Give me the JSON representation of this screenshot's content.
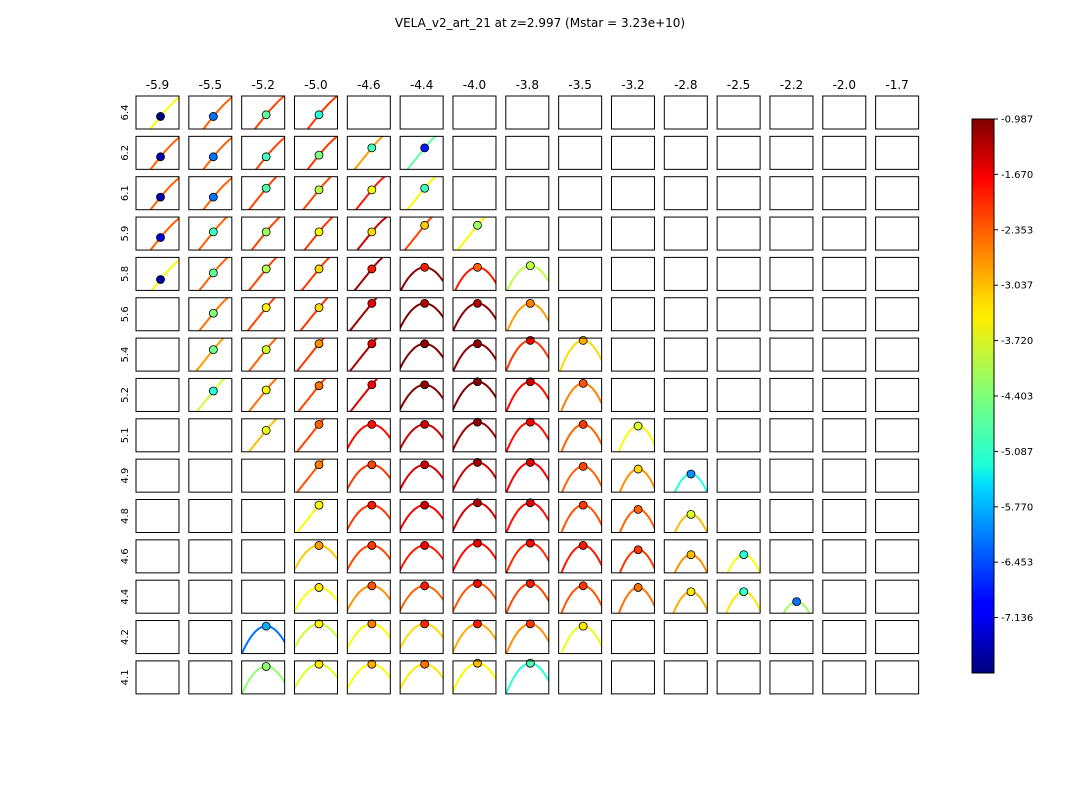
{
  "chart_data": {
    "type": "heatmap",
    "title": "VELA_v2_art_21 at z=2.997 (Mstar = 3.23e+10)",
    "columns": [
      "-5.9",
      "-5.5",
      "-5.2",
      "-5.0",
      "-4.6",
      "-4.4",
      "-4.0",
      "-3.8",
      "-3.5",
      "-3.2",
      "-2.8",
      "-2.5",
      "-2.2",
      "-2.0",
      "-1.7"
    ],
    "rows": [
      "6.4",
      "6.2",
      "6.1",
      "5.9",
      "5.8",
      "5.6",
      "5.4",
      "5.2",
      "5.1",
      "4.9",
      "4.8",
      "4.6",
      "4.4",
      "4.2",
      "4.1"
    ],
    "colorbar": {
      "colormap": "jet",
      "vmin": -7.82,
      "vmax": -0.987,
      "tick_labels": [
        "-0.987",
        "-1.670",
        "-2.353",
        "-3.037",
        "-3.720",
        "-4.403",
        "-5.087",
        "-5.770",
        "-6.453",
        "-7.136"
      ]
    },
    "grid": false,
    "cells": [
      {
        "r": 0,
        "c": 0,
        "v": -7.8,
        "line": -3.6,
        "dx": 0.57,
        "dy": 0.62,
        "shape": "rise",
        "s": 0.25
      },
      {
        "r": 0,
        "c": 1,
        "v": -6.2,
        "line": -2.5,
        "dx": 0.57,
        "dy": 0.62,
        "shape": "rise",
        "s": 0.25
      },
      {
        "r": 0,
        "c": 2,
        "v": -4.6,
        "line": -2.3,
        "dx": 0.57,
        "dy": 0.57,
        "shape": "rise",
        "s": 0.25
      },
      {
        "r": 0,
        "c": 3,
        "v": -5.0,
        "line": -2.2,
        "dx": 0.57,
        "dy": 0.57,
        "shape": "rise",
        "s": 0.25
      },
      {
        "r": 1,
        "c": 0,
        "v": -7.5,
        "line": -2.5,
        "dx": 0.57,
        "dy": 0.62,
        "shape": "rise",
        "s": 0.25
      },
      {
        "r": 1,
        "c": 1,
        "v": -6.2,
        "line": -2.5,
        "dx": 0.57,
        "dy": 0.62,
        "shape": "rise",
        "s": 0.25
      },
      {
        "r": 1,
        "c": 2,
        "v": -4.8,
        "line": -2.3,
        "dx": 0.57,
        "dy": 0.62,
        "shape": "rise",
        "s": 0.25
      },
      {
        "r": 1,
        "c": 3,
        "v": -4.4,
        "line": -2.2,
        "dx": 0.57,
        "dy": 0.57,
        "shape": "rise",
        "s": 0.25
      },
      {
        "r": 1,
        "c": 4,
        "v": -4.8,
        "line": -2.9,
        "dx": 0.57,
        "dy": 0.35,
        "shape": "rise",
        "s": 0.35
      },
      {
        "r": 1,
        "c": 5,
        "v": -6.8,
        "line": -4.6,
        "dx": 0.57,
        "dy": 0.35,
        "shape": "rise",
        "s": 0.35
      },
      {
        "r": 2,
        "c": 0,
        "v": -7.5,
        "line": -2.5,
        "dx": 0.57,
        "dy": 0.62,
        "shape": "rise",
        "s": 0.25
      },
      {
        "r": 2,
        "c": 1,
        "v": -6.2,
        "line": -2.5,
        "dx": 0.57,
        "dy": 0.62,
        "shape": "rise",
        "s": 0.25
      },
      {
        "r": 2,
        "c": 2,
        "v": -4.7,
        "line": -2.3,
        "dx": 0.57,
        "dy": 0.35,
        "shape": "rise",
        "s": 0.25
      },
      {
        "r": 2,
        "c": 3,
        "v": -4.0,
        "line": -2.3,
        "dx": 0.57,
        "dy": 0.4,
        "shape": "rise",
        "s": 0.25
      },
      {
        "r": 2,
        "c": 4,
        "v": -3.6,
        "line": -2.0,
        "dx": 0.57,
        "dy": 0.4,
        "shape": "rise",
        "s": 0.35
      },
      {
        "r": 2,
        "c": 5,
        "v": -4.8,
        "line": -3.5,
        "dx": 0.57,
        "dy": 0.35,
        "shape": "rise",
        "s": 0.35
      },
      {
        "r": 3,
        "c": 0,
        "v": -7.2,
        "line": -2.5,
        "dx": 0.57,
        "dy": 0.62,
        "shape": "rise",
        "s": 0.25
      },
      {
        "r": 3,
        "c": 1,
        "v": -4.8,
        "line": -2.5,
        "dx": 0.57,
        "dy": 0.45,
        "shape": "rise",
        "s": 0.25
      },
      {
        "r": 3,
        "c": 2,
        "v": -4.2,
        "line": -2.3,
        "dx": 0.57,
        "dy": 0.45,
        "shape": "rise",
        "s": 0.25
      },
      {
        "r": 3,
        "c": 3,
        "v": -3.5,
        "line": -2.2,
        "dx": 0.57,
        "dy": 0.45,
        "shape": "rise",
        "s": 0.25
      },
      {
        "r": 3,
        "c": 4,
        "v": -3.3,
        "line": -1.5,
        "dx": 0.57,
        "dy": 0.45,
        "shape": "rise",
        "s": 0.35
      },
      {
        "r": 3,
        "c": 5,
        "v": -3.2,
        "line": -2.3,
        "dx": 0.57,
        "dy": 0.25,
        "shape": "rise",
        "s": 0.35
      },
      {
        "r": 3,
        "c": 6,
        "v": -4.2,
        "line": -3.5,
        "dx": 0.57,
        "dy": 0.25,
        "shape": "rise",
        "s": 0.4
      },
      {
        "r": 4,
        "c": 0,
        "v": -7.6,
        "line": -3.6,
        "dx": 0.57,
        "dy": 0.67,
        "shape": "rise",
        "s": 0.25
      },
      {
        "r": 4,
        "c": 1,
        "v": -4.6,
        "line": -2.5,
        "dx": 0.57,
        "dy": 0.47,
        "shape": "rise",
        "s": 0.25
      },
      {
        "r": 4,
        "c": 2,
        "v": -4.0,
        "line": -2.3,
        "dx": 0.57,
        "dy": 0.35,
        "shape": "rise",
        "s": 0.25
      },
      {
        "r": 4,
        "c": 3,
        "v": -3.3,
        "line": -2.2,
        "dx": 0.57,
        "dy": 0.35,
        "shape": "rise",
        "s": 0.25
      },
      {
        "r": 4,
        "c": 4,
        "v": -2.0,
        "line": -1.2,
        "dx": 0.57,
        "dy": 0.35,
        "shape": "rise",
        "s": 0.35
      },
      {
        "r": 4,
        "c": 5,
        "v": -2.0,
        "line": -1.1,
        "dx": 0.57,
        "dy": 0.3,
        "shape": "arch",
        "s": 0.35
      },
      {
        "r": 4,
        "c": 6,
        "v": -2.5,
        "line": -2.0,
        "dx": 0.57,
        "dy": 0.3,
        "shape": "arch",
        "s": 0.4
      },
      {
        "r": 4,
        "c": 7,
        "v": -4.0,
        "line": -4.0,
        "dx": 0.57,
        "dy": 0.25,
        "shape": "arch",
        "s": 0.4
      },
      {
        "r": 5,
        "c": 1,
        "v": -4.4,
        "line": -2.6,
        "dx": 0.57,
        "dy": 0.47,
        "shape": "rise",
        "s": 0.25
      },
      {
        "r": 5,
        "c": 2,
        "v": -3.5,
        "line": -2.3,
        "dx": 0.57,
        "dy": 0.3,
        "shape": "rise",
        "s": 0.25
      },
      {
        "r": 5,
        "c": 3,
        "v": -3.3,
        "line": -2.2,
        "dx": 0.57,
        "dy": 0.3,
        "shape": "rise",
        "s": 0.25
      },
      {
        "r": 5,
        "c": 4,
        "v": -1.7,
        "line": -1.2,
        "dx": 0.57,
        "dy": 0.17,
        "shape": "rise",
        "s": 0.35
      },
      {
        "r": 5,
        "c": 5,
        "v": -1.3,
        "line": -1.0,
        "dx": 0.57,
        "dy": 0.17,
        "shape": "arch",
        "s": 0.35
      },
      {
        "r": 5,
        "c": 6,
        "v": -1.3,
        "line": -1.1,
        "dx": 0.57,
        "dy": 0.17,
        "shape": "arch",
        "s": 0.4
      },
      {
        "r": 5,
        "c": 7,
        "v": -2.7,
        "line": -2.9,
        "dx": 0.57,
        "dy": 0.17,
        "shape": "arch",
        "s": 0.45
      },
      {
        "r": 6,
        "c": 1,
        "v": -4.5,
        "line": -2.9,
        "dx": 0.57,
        "dy": 0.35,
        "shape": "rise",
        "s": 0.25
      },
      {
        "r": 6,
        "c": 2,
        "v": -3.8,
        "line": -2.5,
        "dx": 0.57,
        "dy": 0.35,
        "shape": "rise",
        "s": 0.25
      },
      {
        "r": 6,
        "c": 3,
        "v": -2.8,
        "line": -2.2,
        "dx": 0.57,
        "dy": 0.17,
        "shape": "rise",
        "s": 0.3
      },
      {
        "r": 6,
        "c": 4,
        "v": -1.7,
        "line": -1.3,
        "dx": 0.57,
        "dy": 0.17,
        "shape": "rise",
        "s": 0.35
      },
      {
        "r": 6,
        "c": 5,
        "v": -1.1,
        "line": -1.0,
        "dx": 0.57,
        "dy": 0.17,
        "shape": "arch",
        "s": 0.35
      },
      {
        "r": 6,
        "c": 6,
        "v": -1.1,
        "line": -1.1,
        "dx": 0.57,
        "dy": 0.17,
        "shape": "arch",
        "s": 0.4
      },
      {
        "r": 6,
        "c": 7,
        "v": -1.8,
        "line": -2.2,
        "dx": 0.57,
        "dy": 0.07,
        "shape": "arch",
        "s": 0.45
      },
      {
        "r": 6,
        "c": 8,
        "v": -3.0,
        "line": -3.3,
        "dx": 0.57,
        "dy": 0.07,
        "shape": "arch",
        "s": 0.5
      },
      {
        "r": 7,
        "c": 1,
        "v": -5.0,
        "line": -3.9,
        "dx": 0.57,
        "dy": 0.38,
        "shape": "rise",
        "s": 0.25
      },
      {
        "r": 7,
        "c": 2,
        "v": -3.5,
        "line": -2.6,
        "dx": 0.57,
        "dy": 0.35,
        "shape": "rise",
        "s": 0.25
      },
      {
        "r": 7,
        "c": 3,
        "v": -2.6,
        "line": -2.3,
        "dx": 0.57,
        "dy": 0.22,
        "shape": "rise",
        "s": 0.3
      },
      {
        "r": 7,
        "c": 4,
        "v": -1.8,
        "line": -1.6,
        "dx": 0.57,
        "dy": 0.19,
        "shape": "rise",
        "s": 0.35
      },
      {
        "r": 7,
        "c": 5,
        "v": -1.1,
        "line": -1.0,
        "dx": 0.57,
        "dy": 0.19,
        "shape": "arch",
        "s": 0.35
      },
      {
        "r": 7,
        "c": 6,
        "v": -1.0,
        "line": -1.0,
        "dx": 0.57,
        "dy": 0.1,
        "shape": "arch",
        "s": 0.4
      },
      {
        "r": 7,
        "c": 7,
        "v": -1.5,
        "line": -1.9,
        "dx": 0.57,
        "dy": 0.1,
        "shape": "arch",
        "s": 0.45
      },
      {
        "r": 7,
        "c": 8,
        "v": -2.4,
        "line": -2.7,
        "dx": 0.57,
        "dy": 0.15,
        "shape": "arch",
        "s": 0.5
      },
      {
        "r": 8,
        "c": 2,
        "v": -3.7,
        "line": -3.1,
        "dx": 0.57,
        "dy": 0.35,
        "shape": "rise",
        "s": 0.25
      },
      {
        "r": 8,
        "c": 3,
        "v": -2.5,
        "line": -2.3,
        "dx": 0.57,
        "dy": 0.17,
        "shape": "rise",
        "s": 0.3
      },
      {
        "r": 8,
        "c": 4,
        "v": -1.9,
        "line": -1.9,
        "dx": 0.57,
        "dy": 0.17,
        "shape": "arch",
        "s": 0.35
      },
      {
        "r": 8,
        "c": 5,
        "v": -1.5,
        "line": -1.5,
        "dx": 0.57,
        "dy": 0.17,
        "shape": "arch",
        "s": 0.35
      },
      {
        "r": 8,
        "c": 6,
        "v": -1.1,
        "line": -1.2,
        "dx": 0.57,
        "dy": 0.1,
        "shape": "arch",
        "s": 0.4
      },
      {
        "r": 8,
        "c": 7,
        "v": -1.8,
        "line": -1.9,
        "dx": 0.57,
        "dy": 0.1,
        "shape": "arch",
        "s": 0.45
      },
      {
        "r": 8,
        "c": 8,
        "v": -2.2,
        "line": -2.5,
        "dx": 0.57,
        "dy": 0.17,
        "shape": "arch",
        "s": 0.5
      },
      {
        "r": 8,
        "c": 9,
        "v": -3.8,
        "line": -3.5,
        "dx": 0.62,
        "dy": 0.22,
        "shape": "arch",
        "s": 0.6
      },
      {
        "r": 9,
        "c": 3,
        "v": -2.7,
        "line": -2.4,
        "dx": 0.57,
        "dy": 0.17,
        "shape": "rise",
        "s": 0.3
      },
      {
        "r": 9,
        "c": 4,
        "v": -2.3,
        "line": -2.2,
        "dx": 0.57,
        "dy": 0.17,
        "shape": "arch",
        "s": 0.35
      },
      {
        "r": 9,
        "c": 5,
        "v": -1.5,
        "line": -1.6,
        "dx": 0.57,
        "dy": 0.17,
        "shape": "arch",
        "s": 0.35
      },
      {
        "r": 9,
        "c": 6,
        "v": -1.2,
        "line": -1.5,
        "dx": 0.57,
        "dy": 0.1,
        "shape": "arch",
        "s": 0.4
      },
      {
        "r": 9,
        "c": 7,
        "v": -1.6,
        "line": -1.8,
        "dx": 0.57,
        "dy": 0.1,
        "shape": "arch",
        "s": 0.45
      },
      {
        "r": 9,
        "c": 8,
        "v": -2.3,
        "line": -2.5,
        "dx": 0.57,
        "dy": 0.22,
        "shape": "arch",
        "s": 0.5
      },
      {
        "r": 9,
        "c": 9,
        "v": -3.3,
        "line": -2.8,
        "dx": 0.62,
        "dy": 0.3,
        "shape": "arch",
        "s": 0.6
      },
      {
        "r": 9,
        "c": 10,
        "v": -6.0,
        "line": -5.0,
        "dx": 0.62,
        "dy": 0.45,
        "shape": "arch",
        "s": 0.6
      },
      {
        "r": 10,
        "c": 3,
        "v": -3.6,
        "line": -3.5,
        "dx": 0.57,
        "dy": 0.17,
        "shape": "rise",
        "s": 0.35
      },
      {
        "r": 10,
        "c": 4,
        "v": -2.0,
        "line": -2.2,
        "dx": 0.57,
        "dy": 0.17,
        "shape": "arch",
        "s": 0.35
      },
      {
        "r": 10,
        "c": 5,
        "v": -1.5,
        "line": -1.8,
        "dx": 0.57,
        "dy": 0.17,
        "shape": "arch",
        "s": 0.35
      },
      {
        "r": 10,
        "c": 6,
        "v": -1.3,
        "line": -1.6,
        "dx": 0.57,
        "dy": 0.1,
        "shape": "arch",
        "s": 0.4
      },
      {
        "r": 10,
        "c": 7,
        "v": -1.6,
        "line": -1.9,
        "dx": 0.57,
        "dy": 0.1,
        "shape": "arch",
        "s": 0.45
      },
      {
        "r": 10,
        "c": 8,
        "v": -2.2,
        "line": -2.4,
        "dx": 0.57,
        "dy": 0.17,
        "shape": "arch",
        "s": 0.5
      },
      {
        "r": 10,
        "c": 9,
        "v": -2.5,
        "line": -2.5,
        "dx": 0.62,
        "dy": 0.3,
        "shape": "arch",
        "s": 0.6
      },
      {
        "r": 10,
        "c": 10,
        "v": -3.8,
        "line": -3.1,
        "dx": 0.62,
        "dy": 0.45,
        "shape": "arch",
        "s": 0.6
      },
      {
        "r": 11,
        "c": 3,
        "v": -2.9,
        "line": -3.2,
        "dx": 0.57,
        "dy": 0.17,
        "shape": "arch",
        "s": 0.35
      },
      {
        "r": 11,
        "c": 4,
        "v": -2.2,
        "line": -2.3,
        "dx": 0.57,
        "dy": 0.17,
        "shape": "arch",
        "s": 0.35
      },
      {
        "r": 11,
        "c": 5,
        "v": -1.8,
        "line": -2.0,
        "dx": 0.57,
        "dy": 0.17,
        "shape": "arch",
        "s": 0.35
      },
      {
        "r": 11,
        "c": 6,
        "v": -1.7,
        "line": -1.9,
        "dx": 0.57,
        "dy": 0.1,
        "shape": "arch",
        "s": 0.4
      },
      {
        "r": 11,
        "c": 7,
        "v": -1.9,
        "line": -2.1,
        "dx": 0.57,
        "dy": 0.1,
        "shape": "arch",
        "s": 0.45
      },
      {
        "r": 11,
        "c": 8,
        "v": -2.0,
        "line": -2.0,
        "dx": 0.57,
        "dy": 0.17,
        "shape": "arch",
        "s": 0.5
      },
      {
        "r": 11,
        "c": 9,
        "v": -2.2,
        "line": -2.2,
        "dx": 0.62,
        "dy": 0.3,
        "shape": "arch",
        "s": 0.6
      },
      {
        "r": 11,
        "c": 10,
        "v": -3.1,
        "line": -2.8,
        "dx": 0.62,
        "dy": 0.45,
        "shape": "arch",
        "s": 0.6
      },
      {
        "r": 11,
        "c": 11,
        "v": -5.0,
        "line": -3.6,
        "dx": 0.62,
        "dy": 0.45,
        "shape": "arch",
        "s": 0.6
      },
      {
        "r": 12,
        "c": 3,
        "v": -3.4,
        "line": -3.6,
        "dx": 0.57,
        "dy": 0.22,
        "shape": "arch",
        "s": 0.35
      },
      {
        "r": 12,
        "c": 4,
        "v": -2.4,
        "line": -2.8,
        "dx": 0.57,
        "dy": 0.17,
        "shape": "arch",
        "s": 0.35
      },
      {
        "r": 12,
        "c": 5,
        "v": -2.0,
        "line": -2.5,
        "dx": 0.57,
        "dy": 0.17,
        "shape": "arch",
        "s": 0.35
      },
      {
        "r": 12,
        "c": 6,
        "v": -1.9,
        "line": -2.4,
        "dx": 0.57,
        "dy": 0.1,
        "shape": "arch",
        "s": 0.4
      },
      {
        "r": 12,
        "c": 7,
        "v": -2.0,
        "line": -2.3,
        "dx": 0.57,
        "dy": 0.1,
        "shape": "arch",
        "s": 0.45
      },
      {
        "r": 12,
        "c": 8,
        "v": -2.2,
        "line": -2.4,
        "dx": 0.57,
        "dy": 0.17,
        "shape": "arch",
        "s": 0.5
      },
      {
        "r": 12,
        "c": 9,
        "v": -2.6,
        "line": -2.6,
        "dx": 0.62,
        "dy": 0.22,
        "shape": "arch",
        "s": 0.6
      },
      {
        "r": 12,
        "c": 10,
        "v": -3.4,
        "line": -3.0,
        "dx": 0.62,
        "dy": 0.35,
        "shape": "arch",
        "s": 0.6
      },
      {
        "r": 12,
        "c": 11,
        "v": -4.9,
        "line": -3.4,
        "dx": 0.62,
        "dy": 0.35,
        "shape": "arch",
        "s": 0.6
      },
      {
        "r": 12,
        "c": 12,
        "v": -6.2,
        "line": -4.2,
        "dx": 0.62,
        "dy": 0.65,
        "shape": "arch",
        "s": 0.6
      },
      {
        "r": 13,
        "c": 2,
        "v": -5.8,
        "line": -6.2,
        "dx": 0.57,
        "dy": 0.17,
        "shape": "arch",
        "s": 0.4
      },
      {
        "r": 13,
        "c": 3,
        "v": -3.5,
        "line": -3.9,
        "dx": 0.57,
        "dy": 0.1,
        "shape": "arch",
        "s": 0.35
      },
      {
        "r": 13,
        "c": 4,
        "v": -2.7,
        "line": -3.6,
        "dx": 0.57,
        "dy": 0.1,
        "shape": "arch",
        "s": 0.35
      },
      {
        "r": 13,
        "c": 5,
        "v": -2.1,
        "line": -3.3,
        "dx": 0.57,
        "dy": 0.1,
        "shape": "arch",
        "s": 0.35
      },
      {
        "r": 13,
        "c": 6,
        "v": -2.0,
        "line": -3.0,
        "dx": 0.57,
        "dy": 0.1,
        "shape": "arch",
        "s": 0.4
      },
      {
        "r": 13,
        "c": 7,
        "v": -2.2,
        "line": -2.8,
        "dx": 0.57,
        "dy": 0.1,
        "shape": "arch",
        "s": 0.45
      },
      {
        "r": 13,
        "c": 8,
        "v": -3.4,
        "line": -3.7,
        "dx": 0.57,
        "dy": 0.17,
        "shape": "arch",
        "s": 0.5
      },
      {
        "r": 14,
        "c": 2,
        "v": -4.3,
        "line": -4.3,
        "dx": 0.57,
        "dy": 0.17,
        "shape": "arch",
        "s": 0.4
      },
      {
        "r": 14,
        "c": 3,
        "v": -3.4,
        "line": -3.8,
        "dx": 0.57,
        "dy": 0.1,
        "shape": "arch",
        "s": 0.35
      },
      {
        "r": 14,
        "c": 4,
        "v": -3.0,
        "line": -3.6,
        "dx": 0.57,
        "dy": 0.1,
        "shape": "arch",
        "s": 0.35
      },
      {
        "r": 14,
        "c": 5,
        "v": -2.6,
        "line": -3.4,
        "dx": 0.57,
        "dy": 0.1,
        "shape": "arch",
        "s": 0.35
      },
      {
        "r": 14,
        "c": 6,
        "v": -3.1,
        "line": -3.5,
        "dx": 0.57,
        "dy": 0.07,
        "shape": "arch",
        "s": 0.4
      },
      {
        "r": 14,
        "c": 7,
        "v": -4.7,
        "line": -5.0,
        "dx": 0.57,
        "dy": 0.07,
        "shape": "arch",
        "s": 0.45
      }
    ]
  }
}
